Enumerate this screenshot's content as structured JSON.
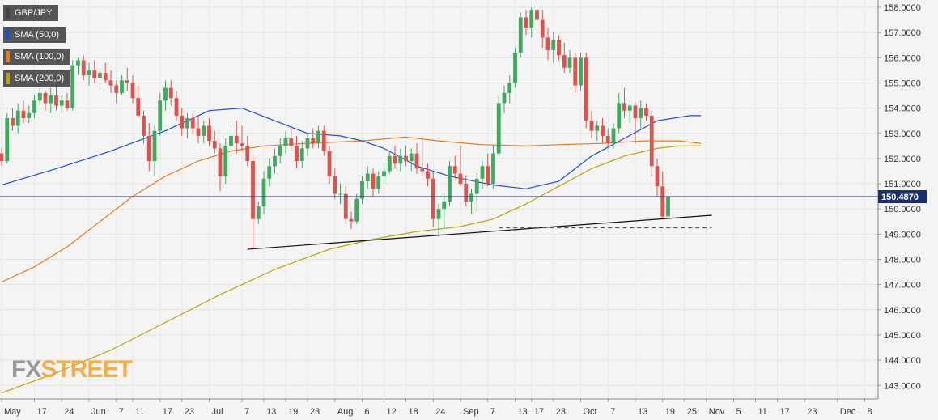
{
  "legend": {
    "symbol": "GBP/JPY",
    "sma50": "SMA (50,0)",
    "sma100": "SMA (100,0)",
    "sma200": "SMA (200,0)"
  },
  "colors": {
    "bull": "#41a85f",
    "bear": "#d9534f",
    "sma50": "#1f4fd1",
    "sma100": "#ea7a1c",
    "sma200": "#b8a40a",
    "trend": "#111111",
    "price_line": "#1a2f6e",
    "support": "#555555",
    "logo_fx": "#888888",
    "logo_street": "#f2a12f"
  },
  "last_price": "150.4870",
  "logo": {
    "fx": "FX",
    "street": "STREET"
  },
  "chart_data": {
    "type": "candlestick",
    "title": "GBP/JPY",
    "ylim": [
      142.5,
      158.3
    ],
    "y_ticks": [
      "158.0000",
      "157.0000",
      "156.0000",
      "155.0000",
      "154.0000",
      "153.0000",
      "152.0000",
      "151.0000",
      "150.0000",
      "149.0000",
      "148.0000",
      "147.0000",
      "146.0000",
      "145.0000",
      "144.0000",
      "143.0000"
    ],
    "x_ticks": [
      "May",
      "17",
      "24",
      "Jun",
      "7",
      "11",
      "17",
      "23",
      "Jul",
      "7",
      "13",
      "19",
      "23",
      "Aug",
      "6",
      "12",
      "18",
      "24",
      "Sep",
      "7",
      "13",
      "17",
      "23",
      "Oct",
      "7",
      "13",
      "19",
      "25",
      "Nov",
      "5",
      "11",
      "17",
      "23",
      "Dec",
      "8"
    ],
    "x_tick_index": [
      0,
      6,
      11,
      16,
      21,
      24,
      29,
      33,
      38,
      44,
      48,
      52,
      56,
      61,
      66,
      70,
      74,
      79,
      84,
      89,
      94,
      97,
      101,
      106,
      111,
      116,
      121,
      125,
      129,
      134,
      138,
      142,
      147,
      153,
      158
    ],
    "ohlc": [
      [
        152.2,
        152.4,
        151.7,
        151.9
      ],
      [
        151.9,
        153.8,
        151.8,
        153.6
      ],
      [
        153.6,
        154.0,
        153.1,
        153.3
      ],
      [
        153.3,
        154.2,
        153.0,
        153.9
      ],
      [
        153.9,
        154.3,
        153.4,
        153.6
      ],
      [
        153.6,
        154.1,
        153.4,
        153.8
      ],
      [
        153.8,
        154.5,
        153.6,
        154.3
      ],
      [
        154.3,
        154.8,
        154.1,
        154.6
      ],
      [
        154.6,
        154.7,
        153.9,
        154.2
      ],
      [
        154.2,
        154.8,
        153.8,
        154.5
      ],
      [
        154.5,
        154.9,
        153.9,
        154.1
      ],
      [
        154.1,
        154.5,
        153.8,
        154.3
      ],
      [
        154.3,
        154.6,
        153.9,
        154.0
      ],
      [
        154.0,
        155.9,
        153.9,
        155.7
      ],
      [
        155.7,
        156.0,
        155.3,
        155.9
      ],
      [
        155.9,
        156.1,
        155.1,
        155.3
      ],
      [
        155.3,
        155.8,
        154.9,
        155.5
      ],
      [
        155.5,
        155.9,
        155.0,
        155.2
      ],
      [
        155.2,
        155.6,
        154.9,
        155.4
      ],
      [
        155.4,
        155.8,
        155.0,
        155.1
      ],
      [
        155.1,
        155.5,
        154.6,
        154.9
      ],
      [
        154.9,
        155.1,
        154.2,
        154.6
      ],
      [
        154.6,
        155.3,
        154.5,
        155.1
      ],
      [
        155.1,
        155.6,
        154.7,
        155.0
      ],
      [
        155.0,
        155.3,
        154.2,
        154.4
      ],
      [
        154.4,
        154.9,
        153.6,
        153.7
      ],
      [
        153.7,
        153.9,
        152.6,
        152.9
      ],
      [
        152.9,
        153.4,
        151.5,
        151.9
      ],
      [
        151.9,
        153.3,
        151.3,
        153.1
      ],
      [
        153.1,
        154.6,
        152.9,
        154.3
      ],
      [
        154.3,
        155.1,
        153.9,
        154.8
      ],
      [
        154.8,
        155.1,
        154.1,
        154.4
      ],
      [
        154.4,
        154.7,
        153.5,
        153.7
      ],
      [
        153.7,
        154.0,
        152.9,
        153.2
      ],
      [
        153.2,
        153.8,
        152.8,
        153.6
      ],
      [
        153.6,
        153.8,
        153.0,
        153.2
      ],
      [
        153.2,
        153.7,
        152.6,
        152.9
      ],
      [
        152.9,
        153.5,
        152.6,
        153.3
      ],
      [
        153.3,
        153.6,
        152.5,
        152.7
      ],
      [
        152.7,
        153.1,
        152.2,
        152.4
      ],
      [
        152.4,
        152.6,
        150.7,
        151.3
      ],
      [
        151.3,
        152.8,
        151.0,
        152.5
      ],
      [
        152.5,
        153.3,
        152.1,
        152.9
      ],
      [
        152.9,
        153.5,
        152.2,
        152.6
      ],
      [
        152.6,
        153.3,
        152.3,
        152.5
      ],
      [
        152.5,
        152.9,
        151.7,
        151.9
      ],
      [
        151.9,
        152.1,
        148.4,
        149.6
      ],
      [
        149.6,
        150.3,
        149.4,
        150.1
      ],
      [
        150.1,
        151.5,
        149.8,
        151.2
      ],
      [
        151.2,
        152.0,
        150.9,
        151.7
      ],
      [
        151.7,
        152.4,
        151.4,
        152.1
      ],
      [
        152.1,
        152.8,
        151.8,
        152.5
      ],
      [
        152.5,
        153.1,
        152.2,
        152.8
      ],
      [
        152.8,
        153.3,
        152.3,
        152.5
      ],
      [
        152.5,
        152.9,
        151.6,
        151.9
      ],
      [
        151.9,
        152.7,
        151.6,
        152.4
      ],
      [
        152.4,
        153.0,
        152.1,
        152.8
      ],
      [
        152.8,
        153.2,
        152.4,
        152.6
      ],
      [
        152.6,
        153.3,
        152.4,
        153.1
      ],
      [
        153.1,
        153.3,
        152.1,
        152.3
      ],
      [
        152.3,
        152.5,
        151.0,
        151.3
      ],
      [
        151.3,
        151.6,
        150.4,
        150.6
      ],
      [
        150.6,
        151.0,
        150.2,
        150.6
      ],
      [
        150.6,
        150.9,
        149.4,
        149.6
      ],
      [
        149.6,
        149.9,
        149.2,
        149.5
      ],
      [
        149.5,
        150.6,
        149.4,
        150.4
      ],
      [
        150.4,
        151.3,
        150.2,
        151.1
      ],
      [
        151.1,
        151.7,
        150.8,
        151.4
      ],
      [
        151.4,
        151.6,
        150.5,
        150.8
      ],
      [
        150.8,
        151.5,
        150.6,
        151.3
      ],
      [
        151.3,
        151.8,
        151.0,
        151.5
      ],
      [
        151.5,
        152.3,
        151.4,
        152.1
      ],
      [
        152.1,
        152.5,
        151.6,
        151.8
      ],
      [
        151.8,
        152.4,
        151.5,
        152.1
      ],
      [
        152.1,
        152.5,
        151.7,
        151.9
      ],
      [
        151.9,
        152.4,
        151.5,
        152.2
      ],
      [
        152.2,
        152.6,
        151.4,
        151.6
      ],
      [
        151.6,
        152.8,
        151.3,
        151.5
      ],
      [
        151.5,
        151.8,
        150.9,
        151.2
      ],
      [
        151.2,
        151.5,
        149.3,
        149.6
      ],
      [
        149.6,
        150.2,
        148.9,
        150.0
      ],
      [
        150.0,
        150.6,
        149.2,
        150.3
      ],
      [
        150.3,
        151.9,
        150.1,
        151.7
      ],
      [
        151.7,
        152.1,
        151.2,
        151.4
      ],
      [
        151.4,
        152.5,
        150.9,
        151.0
      ],
      [
        151.0,
        151.3,
        150.1,
        150.3
      ],
      [
        150.3,
        150.8,
        149.8,
        150.6
      ],
      [
        150.6,
        151.4,
        149.9,
        151.2
      ],
      [
        151.2,
        151.9,
        150.8,
        151.7
      ],
      [
        151.7,
        152.2,
        150.9,
        151.0
      ],
      [
        151.0,
        152.5,
        150.8,
        152.2
      ],
      [
        152.2,
        154.5,
        152.1,
        154.2
      ],
      [
        154.2,
        154.9,
        153.8,
        154.6
      ],
      [
        154.6,
        155.3,
        154.2,
        155.0
      ],
      [
        155.0,
        156.4,
        154.8,
        156.2
      ],
      [
        156.2,
        157.8,
        156.0,
        157.6
      ],
      [
        157.6,
        157.9,
        156.9,
        157.2
      ],
      [
        157.2,
        158.0,
        156.8,
        157.9
      ],
      [
        157.9,
        158.2,
        157.2,
        157.5
      ],
      [
        157.5,
        157.9,
        156.4,
        156.8
      ],
      [
        156.8,
        157.2,
        155.9,
        156.3
      ],
      [
        156.3,
        157.0,
        155.8,
        156.7
      ],
      [
        156.7,
        156.9,
        155.9,
        156.1
      ],
      [
        156.1,
        156.6,
        155.4,
        155.6
      ],
      [
        155.6,
        156.3,
        155.4,
        156.0
      ],
      [
        156.0,
        156.2,
        154.6,
        154.9
      ],
      [
        154.9,
        156.2,
        154.7,
        156.0
      ],
      [
        156.0,
        156.2,
        153.2,
        153.5
      ],
      [
        153.5,
        153.9,
        152.8,
        153.1
      ],
      [
        153.1,
        153.5,
        152.7,
        153.3
      ],
      [
        153.3,
        153.6,
        152.6,
        152.9
      ],
      [
        152.9,
        153.2,
        152.4,
        152.6
      ],
      [
        152.6,
        153.4,
        152.4,
        153.2
      ],
      [
        153.2,
        154.6,
        153.0,
        154.2
      ],
      [
        154.2,
        154.8,
        153.6,
        153.9
      ],
      [
        153.9,
        154.3,
        153.4,
        154.1
      ],
      [
        154.1,
        154.2,
        152.6,
        153.6
      ],
      [
        153.6,
        154.3,
        153.2,
        154.0
      ],
      [
        154.0,
        154.2,
        153.5,
        153.7
      ],
      [
        153.7,
        153.9,
        151.3,
        151.7
      ],
      [
        151.7,
        152.0,
        150.5,
        150.9
      ],
      [
        150.9,
        151.5,
        149.6,
        149.7
      ],
      [
        149.7,
        150.8,
        149.6,
        150.49
      ]
    ],
    "sma50": [
      [
        0,
        150.95
      ],
      [
        10,
        151.6
      ],
      [
        20,
        152.3
      ],
      [
        30,
        153.1
      ],
      [
        38,
        153.9
      ],
      [
        44,
        154.0
      ],
      [
        50,
        153.5
      ],
      [
        56,
        153.0
      ],
      [
        62,
        152.9
      ],
      [
        66,
        152.7
      ],
      [
        70,
        152.4
      ],
      [
        76,
        151.7
      ],
      [
        82,
        151.3
      ],
      [
        90,
        150.95
      ],
      [
        96,
        150.8
      ],
      [
        102,
        151.1
      ],
      [
        108,
        152.1
      ],
      [
        114,
        152.8
      ],
      [
        120,
        153.5
      ],
      [
        126,
        153.7
      ],
      [
        128,
        153.7
      ]
    ],
    "sma100": [
      [
        0,
        147.1
      ],
      [
        6,
        147.7
      ],
      [
        12,
        148.5
      ],
      [
        18,
        149.5
      ],
      [
        24,
        150.5
      ],
      [
        30,
        151.3
      ],
      [
        36,
        151.9
      ],
      [
        42,
        152.3
      ],
      [
        48,
        152.5
      ],
      [
        56,
        152.6
      ],
      [
        66,
        152.7
      ],
      [
        74,
        152.85
      ],
      [
        80,
        152.7
      ],
      [
        88,
        152.55
      ],
      [
        96,
        152.5
      ],
      [
        102,
        152.55
      ],
      [
        110,
        152.6
      ],
      [
        118,
        152.7
      ],
      [
        124,
        152.7
      ],
      [
        128,
        152.6
      ]
    ],
    "sma200": [
      [
        0,
        142.7
      ],
      [
        10,
        143.5
      ],
      [
        20,
        144.4
      ],
      [
        30,
        145.5
      ],
      [
        40,
        146.6
      ],
      [
        50,
        147.6
      ],
      [
        60,
        148.4
      ],
      [
        68,
        148.8
      ],
      [
        76,
        149.1
      ],
      [
        84,
        149.3
      ],
      [
        90,
        149.6
      ],
      [
        96,
        150.2
      ],
      [
        102,
        150.9
      ],
      [
        108,
        151.6
      ],
      [
        114,
        152.1
      ],
      [
        120,
        152.4
      ],
      [
        124,
        152.5
      ],
      [
        128,
        152.5
      ]
    ],
    "trendline": {
      "from": [
        45,
        148.4
      ],
      "to": [
        130,
        149.75
      ]
    },
    "support_level": {
      "from": [
        91,
        149.25
      ],
      "to": [
        130,
        149.25
      ]
    }
  }
}
